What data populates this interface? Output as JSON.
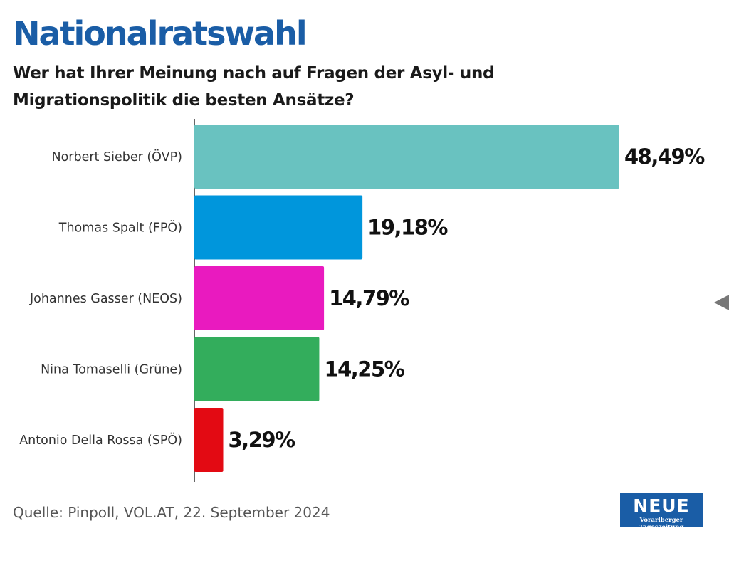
{
  "header": {
    "title": "Nationalratswahl",
    "subtitle": "Wer hat Ihrer Meinung nach auf Fragen der Asyl- und Migrationspolitik die besten Ansätze?"
  },
  "chart_data": {
    "type": "bar",
    "orientation": "horizontal",
    "title": "Nationalratswahl",
    "subtitle": "Wer hat Ihrer Meinung nach auf Fragen der Asyl- und Migrationspolitik die besten Ansätze?",
    "categories": [
      "Norbert Sieber (ÖVP)",
      "Thomas Spalt (FPÖ)",
      "Johannes Gasser (NEOS)",
      "Nina Tomaselli (Grüne)",
      "Antonio Della Rossa (SPÖ)"
    ],
    "values": [
      48.49,
      19.18,
      14.79,
      14.25,
      3.29
    ],
    "value_labels": [
      "48,49%",
      "19,18%",
      "14,79%",
      "14,25%",
      "3,29%"
    ],
    "colors": [
      "#69c2c0",
      "#0096dc",
      "#e91abf",
      "#33ad5c",
      "#e30a13"
    ],
    "unit": "%",
    "xlim": [
      0,
      48.49
    ],
    "xlabel": "",
    "ylabel": "",
    "grid": false
  },
  "source": "Quelle: Pinpoll, VOL.AT, 22. September 2024",
  "logo": {
    "name": "NEUE",
    "tagline": "Vorarlberger Tageszeitung"
  },
  "colors": {
    "title": "#1a5da6",
    "logo_background": "#1a5da6",
    "axis": "#333333"
  }
}
